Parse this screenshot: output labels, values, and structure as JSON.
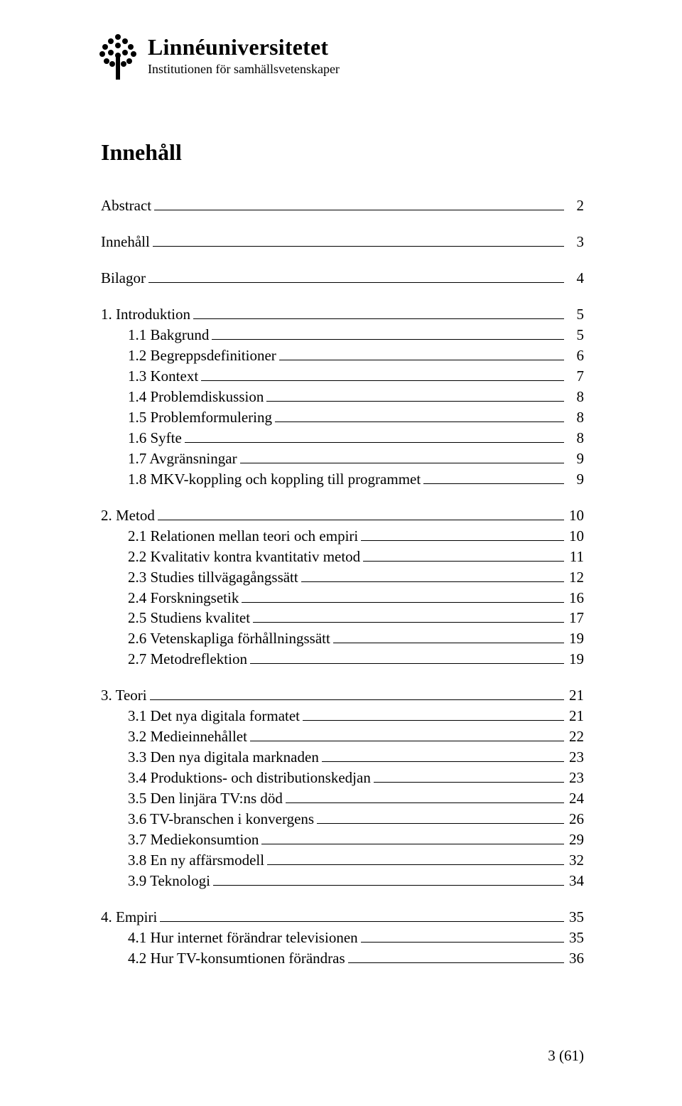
{
  "header": {
    "university": "Linnéuniversitetet",
    "institution": "Institutionen för samhällsvetenskaper"
  },
  "title": "Innehåll",
  "toc": [
    {
      "items": [
        {
          "label": "Abstract",
          "page": "2",
          "indent": false
        }
      ]
    },
    {
      "items": [
        {
          "label": "Innehåll",
          "page": "3",
          "indent": false
        }
      ]
    },
    {
      "items": [
        {
          "label": "Bilagor",
          "page": "4",
          "indent": false
        }
      ]
    },
    {
      "items": [
        {
          "label": "1. Introduktion",
          "page": "5",
          "indent": false
        },
        {
          "label": "1.1 Bakgrund",
          "page": "5",
          "indent": true
        },
        {
          "label": "1.2 Begreppsdefinitioner",
          "page": "6",
          "indent": true
        },
        {
          "label": "1.3 Kontext",
          "page": "7",
          "indent": true
        },
        {
          "label": "1.4 Problemdiskussion",
          "page": "8",
          "indent": true
        },
        {
          "label": "1.5 Problemformulering",
          "page": "8",
          "indent": true
        },
        {
          "label": "1.6 Syfte",
          "page": "8",
          "indent": true
        },
        {
          "label": "1.7 Avgränsningar",
          "page": "9",
          "indent": true
        },
        {
          "label": "1.8 MKV-koppling och koppling till programmet",
          "page": "9",
          "indent": true
        }
      ]
    },
    {
      "items": [
        {
          "label": "2. Metod",
          "page": "10",
          "indent": false
        },
        {
          "label": "2.1 Relationen mellan teori och empiri",
          "page": "10",
          "indent": true
        },
        {
          "label": "2.2 Kvalitativ kontra kvantitativ metod",
          "page": "11",
          "indent": true
        },
        {
          "label": "2.3 Studies tillvägagångssätt",
          "page": "12",
          "indent": true
        },
        {
          "label": "2.4 Forskningsetik",
          "page": "16",
          "indent": true
        },
        {
          "label": "2.5 Studiens kvalitet",
          "page": "17",
          "indent": true
        },
        {
          "label": "2.6 Vetenskapliga förhållningssätt",
          "page": "19",
          "indent": true
        },
        {
          "label": "2.7 Metodreflektion",
          "page": "19",
          "indent": true
        }
      ]
    },
    {
      "items": [
        {
          "label": "3. Teori",
          "page": "21",
          "indent": false
        },
        {
          "label": "3.1 Det nya digitala formatet",
          "page": "21",
          "indent": true
        },
        {
          "label": "3.2 Medieinnehållet",
          "page": "22",
          "indent": true
        },
        {
          "label": "3.3 Den nya digitala marknaden",
          "page": "23",
          "indent": true
        },
        {
          "label": "3.4 Produktions- och distributionskedjan",
          "page": "23",
          "indent": true
        },
        {
          "label": "3.5 Den linjära TV:ns död",
          "page": "24",
          "indent": true
        },
        {
          "label": "3.6 TV-branschen i konvergens",
          "page": "26",
          "indent": true
        },
        {
          "label": "3.7 Mediekonsumtion",
          "page": "29",
          "indent": true
        },
        {
          "label": "3.8 En ny affärsmodell",
          "page": "32",
          "indent": true
        },
        {
          "label": "3.9 Teknologi",
          "page": "34",
          "indent": true
        }
      ]
    },
    {
      "items": [
        {
          "label": "4. Empiri",
          "page": "35",
          "indent": false
        },
        {
          "label": "4.1 Hur internet förändrar televisionen",
          "page": "35",
          "indent": true
        },
        {
          "label": "4.2 Hur TV-konsumtionen förändras",
          "page": "36",
          "indent": true
        }
      ]
    }
  ],
  "footer": {
    "pageLabel": "3 (61)"
  },
  "colors": {
    "text": "#000000",
    "background": "#ffffff"
  }
}
